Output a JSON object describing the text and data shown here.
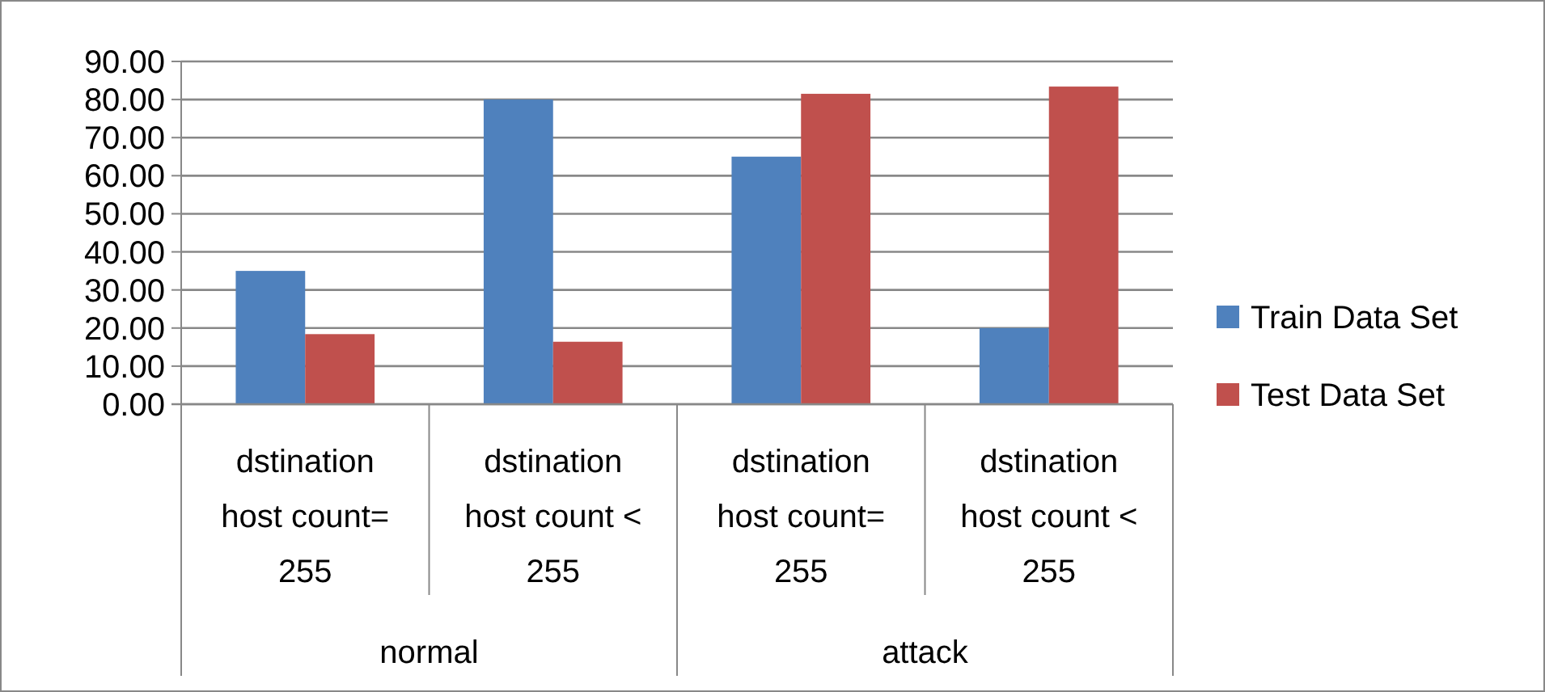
{
  "chart_data": {
    "type": "bar",
    "categories": [
      "dstination host count= 255",
      "dstination host count < 255",
      "dstination host count= 255",
      "dstination host count < 255"
    ],
    "series": [
      {
        "name": "Train Data Set",
        "color": "#4f81bd",
        "values": [
          35,
          80,
          65,
          20
        ]
      },
      {
        "name": "Test Data Set",
        "color": "#c0504d",
        "values": [
          18.4,
          16.4,
          81.5,
          83.4
        ]
      }
    ],
    "ylim": [
      0,
      90
    ],
    "yticks": [
      {
        "value": 0,
        "label": "0.00"
      },
      {
        "value": 10,
        "label": "10.00"
      },
      {
        "value": 20,
        "label": "20.00"
      },
      {
        "value": 30,
        "label": "30.00"
      },
      {
        "value": 40,
        "label": "40.00"
      },
      {
        "value": 50,
        "label": "50.00"
      },
      {
        "value": 60,
        "label": "60.00"
      },
      {
        "value": 70,
        "label": "70.00"
      },
      {
        "value": 80,
        "label": "80.00"
      },
      {
        "value": 90,
        "label": "90.00"
      }
    ],
    "grid": "y",
    "legend": "right",
    "annotations": [
      "normal",
      "attack"
    ]
  }
}
